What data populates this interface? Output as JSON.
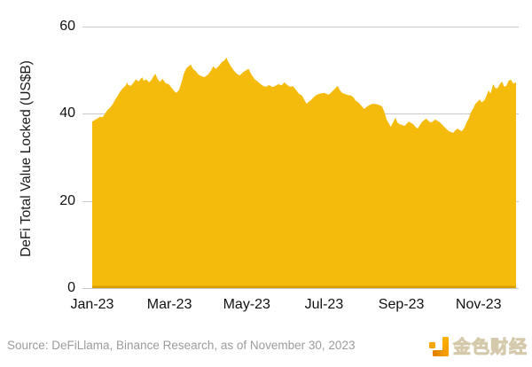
{
  "chart_data": {
    "type": "area",
    "title": "",
    "xlabel": "",
    "ylabel": "DeFi Total Value Locked (US$B)",
    "ylim": [
      0,
      60
    ],
    "yticks": [
      0,
      20,
      40,
      60
    ],
    "x_unit": "months since 1 Jan 2023",
    "x_max": 10.97,
    "xtick_positions": [
      0,
      2,
      4,
      6,
      8,
      10
    ],
    "xtick_labels": [
      "Jan-23",
      "Mar-23",
      "May-23",
      "Jul-23",
      "Sep-23",
      "Nov-23"
    ],
    "grid": "horizontal",
    "legend": "none",
    "points": [
      [
        0.0,
        38.2
      ],
      [
        0.07,
        38.6
      ],
      [
        0.13,
        38.9
      ],
      [
        0.2,
        39.3
      ],
      [
        0.27,
        39.2
      ],
      [
        0.33,
        40.0
      ],
      [
        0.4,
        40.9
      ],
      [
        0.47,
        41.5
      ],
      [
        0.53,
        42.2
      ],
      [
        0.6,
        43.3
      ],
      [
        0.67,
        44.3
      ],
      [
        0.73,
        45.2
      ],
      [
        0.8,
        45.9
      ],
      [
        0.87,
        46.5
      ],
      [
        0.9,
        47.2
      ],
      [
        0.93,
        46.6
      ],
      [
        1.0,
        46.4
      ],
      [
        1.07,
        47.1
      ],
      [
        1.13,
        47.9
      ],
      [
        1.2,
        47.4
      ],
      [
        1.29,
        48.4
      ],
      [
        1.33,
        47.6
      ],
      [
        1.4,
        47.9
      ],
      [
        1.47,
        47.2
      ],
      [
        1.52,
        47.6
      ],
      [
        1.57,
        48.3
      ],
      [
        1.63,
        49.2
      ],
      [
        1.7,
        47.9
      ],
      [
        1.75,
        47.3
      ],
      [
        1.82,
        48.0
      ],
      [
        1.9,
        47.0
      ],
      [
        1.98,
        46.8
      ],
      [
        2.05,
        46.0
      ],
      [
        2.12,
        45.2
      ],
      [
        2.18,
        44.8
      ],
      [
        2.25,
        45.5
      ],
      [
        2.32,
        47.5
      ],
      [
        2.38,
        49.4
      ],
      [
        2.44,
        50.5
      ],
      [
        2.5,
        50.9
      ],
      [
        2.55,
        51.3
      ],
      [
        2.61,
        50.3
      ],
      [
        2.67,
        49.9
      ],
      [
        2.75,
        49.0
      ],
      [
        2.83,
        48.6
      ],
      [
        2.9,
        48.4
      ],
      [
        3.0,
        49.0
      ],
      [
        3.08,
        50.0
      ],
      [
        3.13,
        50.9
      ],
      [
        3.2,
        50.3
      ],
      [
        3.28,
        51.0
      ],
      [
        3.36,
        51.9
      ],
      [
        3.42,
        52.2
      ],
      [
        3.47,
        52.9
      ],
      [
        3.53,
        51.8
      ],
      [
        3.59,
        50.9
      ],
      [
        3.66,
        50.0
      ],
      [
        3.74,
        49.2
      ],
      [
        3.82,
        48.8
      ],
      [
        3.9,
        49.5
      ],
      [
        4.0,
        50.1
      ],
      [
        4.05,
        50.3
      ],
      [
        4.12,
        49.0
      ],
      [
        4.2,
        48.0
      ],
      [
        4.28,
        47.4
      ],
      [
        4.36,
        46.8
      ],
      [
        4.44,
        46.3
      ],
      [
        4.51,
        46.2
      ],
      [
        4.58,
        46.6
      ],
      [
        4.66,
        46.1
      ],
      [
        4.74,
        46.4
      ],
      [
        4.82,
        46.8
      ],
      [
        4.9,
        46.5
      ],
      [
        4.97,
        47.2
      ],
      [
        5.05,
        46.6
      ],
      [
        5.12,
        46.2
      ],
      [
        5.2,
        46.3
      ],
      [
        5.28,
        45.4
      ],
      [
        5.35,
        44.6
      ],
      [
        5.43,
        44.2
      ],
      [
        5.5,
        43.0
      ],
      [
        5.55,
        42.3
      ],
      [
        5.61,
        42.8
      ],
      [
        5.66,
        43.1
      ],
      [
        5.72,
        43.7
      ],
      [
        5.78,
        44.2
      ],
      [
        5.85,
        44.5
      ],
      [
        5.93,
        44.7
      ],
      [
        6.01,
        44.8
      ],
      [
        6.08,
        44.5
      ],
      [
        6.12,
        44.4
      ],
      [
        6.2,
        45.0
      ],
      [
        6.28,
        45.7
      ],
      [
        6.35,
        46.4
      ],
      [
        6.42,
        45.3
      ],
      [
        6.47,
        44.8
      ],
      [
        6.55,
        44.5
      ],
      [
        6.62,
        44.3
      ],
      [
        6.7,
        44.2
      ],
      [
        6.78,
        43.6
      ],
      [
        6.81,
        43.1
      ],
      [
        6.9,
        42.5
      ],
      [
        7.0,
        41.5
      ],
      [
        7.04,
        41.1
      ],
      [
        7.12,
        41.7
      ],
      [
        7.2,
        42.1
      ],
      [
        7.27,
        42.3
      ],
      [
        7.35,
        42.2
      ],
      [
        7.43,
        42.0
      ],
      [
        7.5,
        41.7
      ],
      [
        7.56,
        40.5
      ],
      [
        7.62,
        38.7
      ],
      [
        7.68,
        37.8
      ],
      [
        7.73,
        37.0
      ],
      [
        7.8,
        38.3
      ],
      [
        7.85,
        39.1
      ],
      [
        7.9,
        38.0
      ],
      [
        7.96,
        37.6
      ],
      [
        8.03,
        37.4
      ],
      [
        8.08,
        37.2
      ],
      [
        8.15,
        37.8
      ],
      [
        8.19,
        38.2
      ],
      [
        8.26,
        37.9
      ],
      [
        8.31,
        37.6
      ],
      [
        8.37,
        37.0
      ],
      [
        8.42,
        36.6
      ],
      [
        8.48,
        37.4
      ],
      [
        8.54,
        38.2
      ],
      [
        8.6,
        38.6
      ],
      [
        8.65,
        38.9
      ],
      [
        8.71,
        38.3
      ],
      [
        8.77,
        38.0
      ],
      [
        8.84,
        38.4
      ],
      [
        8.88,
        38.7
      ],
      [
        8.95,
        38.3
      ],
      [
        9.0,
        38.0
      ],
      [
        9.06,
        37.5
      ],
      [
        9.11,
        37.0
      ],
      [
        9.17,
        36.5
      ],
      [
        9.23,
        36.0
      ],
      [
        9.29,
        35.8
      ],
      [
        9.34,
        35.6
      ],
      [
        9.4,
        36.2
      ],
      [
        9.46,
        36.6
      ],
      [
        9.52,
        36.2
      ],
      [
        9.57,
        36.0
      ],
      [
        9.63,
        36.8
      ],
      [
        9.69,
        38.0
      ],
      [
        9.75,
        39.0
      ],
      [
        9.8,
        40.3
      ],
      [
        9.86,
        41.2
      ],
      [
        9.92,
        42.3
      ],
      [
        10.0,
        43.0
      ],
      [
        10.03,
        43.3
      ],
      [
        10.08,
        42.6
      ],
      [
        10.15,
        43.1
      ],
      [
        10.2,
        44.0
      ],
      [
        10.26,
        45.4
      ],
      [
        10.31,
        44.6
      ],
      [
        10.38,
        46.8
      ],
      [
        10.43,
        45.9
      ],
      [
        10.49,
        45.8
      ],
      [
        10.55,
        46.8
      ],
      [
        10.61,
        47.4
      ],
      [
        10.66,
        46.2
      ],
      [
        10.72,
        46.4
      ],
      [
        10.78,
        47.6
      ],
      [
        10.84,
        47.8
      ],
      [
        10.9,
        46.9
      ],
      [
        10.97,
        47.2
      ]
    ],
    "colors": {
      "area_fill": "#f5bb0c",
      "area_bottom_edge": "#d99c00",
      "gridline": "#c9c9c9",
      "axis_text": "#111111"
    }
  },
  "footer": {
    "source": "Source: DeFiLlama, Binance Research, as of November 30, 2023",
    "logo_text": "金色财经",
    "logo_icon": "jinse-blocks-icon",
    "logo_color": "#f7a600",
    "source_color": "#9b9b9b"
  }
}
